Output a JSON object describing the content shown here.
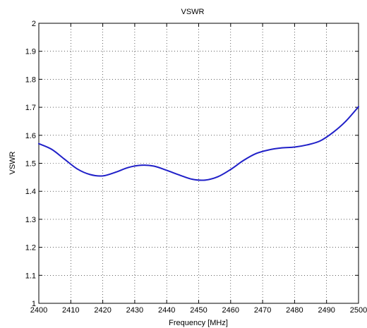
{
  "chart_data": {
    "type": "line",
    "title": "VSWR",
    "xlabel": "Frequency [MHz]",
    "ylabel": "VSWR",
    "xlim": [
      2400,
      2500
    ],
    "ylim": [
      1,
      2
    ],
    "grid": true,
    "grid_style": "dotted",
    "xticks": [
      "2400",
      "2410",
      "2420",
      "2430",
      "2440",
      "2450",
      "2460",
      "2470",
      "2480",
      "2490",
      "2500"
    ],
    "yticks": [
      "1",
      "1.1",
      "1.2",
      "1.3",
      "1.4",
      "1.5",
      "1.6",
      "1.7",
      "1.8",
      "1.9",
      "2"
    ],
    "series": [
      {
        "color": "#2020c8",
        "x": [
          2400,
          2404,
          2408,
          2412,
          2416,
          2420,
          2424,
          2428,
          2432,
          2436,
          2440,
          2444,
          2448,
          2452,
          2456,
          2460,
          2464,
          2468,
          2472,
          2476,
          2480,
          2484,
          2488,
          2492,
          2496,
          2500
        ],
        "y": [
          1.57,
          1.55,
          1.515,
          1.48,
          1.46,
          1.455,
          1.468,
          1.485,
          1.493,
          1.49,
          1.475,
          1.458,
          1.443,
          1.44,
          1.452,
          1.478,
          1.51,
          1.535,
          1.548,
          1.555,
          1.558,
          1.566,
          1.58,
          1.61,
          1.65,
          1.702
        ]
      }
    ]
  }
}
